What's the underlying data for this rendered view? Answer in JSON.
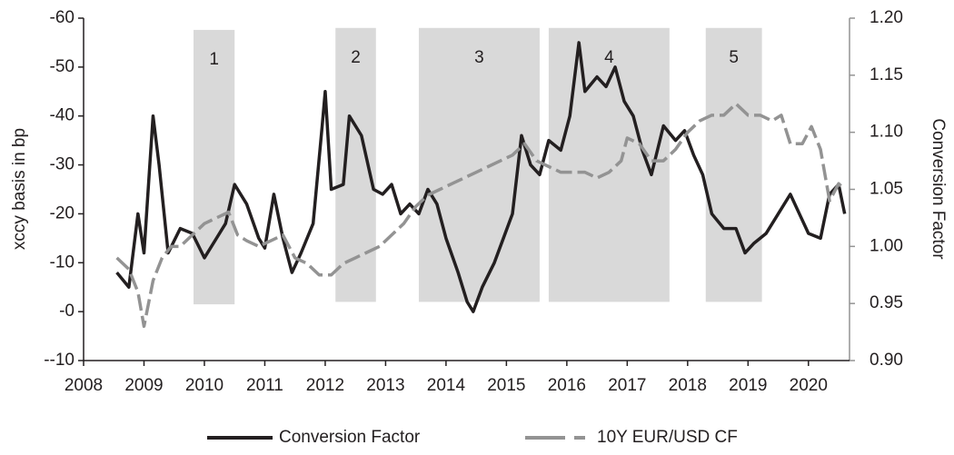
{
  "chart_data": {
    "type": "line",
    "y_label": "xccy basis in bp",
    "y2_label": "Conversion Factor",
    "xlim": [
      2008,
      2020.68
    ],
    "xticks": [
      2008,
      2009,
      2010,
      2011,
      2012,
      2013,
      2014,
      2015,
      2016,
      2017,
      2018,
      2019,
      2020
    ],
    "ylim": [
      10,
      -60
    ],
    "yticks": [
      -60,
      -50,
      -40,
      -30,
      -20,
      -10,
      {
        "value": 0,
        "label": "-0"
      },
      {
        "value": 10,
        "label": "--10"
      }
    ],
    "y2lim": [
      0.9,
      1.2
    ],
    "y2ticks": [
      {
        "value": 0.9,
        "label": "0.90"
      },
      0.95,
      {
        "value": 1,
        "label": "1.00"
      },
      1.05,
      {
        "value": 1.1,
        "label": "1.10"
      },
      1.15,
      {
        "value": 1.2,
        "label": "1.20"
      }
    ],
    "shaded_regions": [
      {
        "label": "1",
        "x": [
          2009.82,
          2010.5
        ],
        "y": [
          -57.6,
          -1.5
        ]
      },
      {
        "label": "2",
        "x": [
          2012.17,
          2012.84
        ],
        "y": [
          -58,
          -2
        ]
      },
      {
        "label": "3",
        "x": [
          2013.55,
          2015.55
        ],
        "y": [
          -58,
          -2
        ]
      },
      {
        "label": "4",
        "x": [
          2015.7,
          2017.7
        ],
        "y": [
          -58,
          -2
        ]
      },
      {
        "label": "5",
        "x": [
          2018.3,
          2019.23
        ],
        "y": [
          -58,
          -2
        ]
      }
    ],
    "legend": "bottom",
    "series": [
      {
        "name": "Conversion Factor",
        "color": "#231f20",
        "dash": false,
        "axis": "y",
        "x": [
          2008.55,
          2008.75,
          2008.9,
          2009.0,
          2009.15,
          2009.25,
          2009.4,
          2009.6,
          2009.8,
          2010.0,
          2010.2,
          2010.35,
          2010.5,
          2010.7,
          2010.9,
          2011.0,
          2011.15,
          2011.3,
          2011.45,
          2011.6,
          2011.8,
          2011.95,
          2012.0,
          2012.1,
          2012.3,
          2012.4,
          2012.6,
          2012.8,
          2012.95,
          2013.1,
          2013.25,
          2013.4,
          2013.55,
          2013.7,
          2013.85,
          2014.0,
          2014.2,
          2014.35,
          2014.45,
          2014.6,
          2014.8,
          2014.95,
          2015.1,
          2015.25,
          2015.4,
          2015.55,
          2015.7,
          2015.9,
          2016.05,
          2016.2,
          2016.3,
          2016.5,
          2016.65,
          2016.8,
          2016.95,
          2017.1,
          2017.25,
          2017.4,
          2017.6,
          2017.8,
          2017.95,
          2018.1,
          2018.25,
          2018.4,
          2018.6,
          2018.8,
          2018.95,
          2019.1,
          2019.3,
          2019.5,
          2019.7,
          2019.85,
          2020.0,
          2020.2,
          2020.35,
          2020.5,
          2020.6
        ],
        "values": [
          -8,
          -5,
          -20,
          -12,
          -40,
          -30,
          -12,
          -17,
          -16,
          -11,
          -15,
          -18,
          -26,
          -22,
          -15,
          -13,
          -24,
          -15,
          -8,
          -12,
          -18,
          -38,
          -45,
          -25,
          -26,
          -40,
          -36,
          -25,
          -24,
          -26,
          -20,
          -22,
          -20,
          -25,
          -22,
          -15,
          -8,
          -2,
          0,
          -5,
          -10,
          -15,
          -20,
          -36,
          -30,
          -28,
          -35,
          -33,
          -40,
          -55,
          -45,
          -48,
          -46,
          -50,
          -43,
          -40,
          -33,
          -28,
          -38,
          -35,
          -37,
          -32,
          -28,
          -20,
          -17,
          -17,
          -12,
          -14,
          -16,
          -20,
          -24,
          -20,
          -16,
          -15,
          -24,
          -26,
          -20
        ]
      },
      {
        "name": "10Y EUR/USD CF",
        "color": "#939393",
        "dash": true,
        "axis": "y2",
        "x": [
          2008.55,
          2008.75,
          2008.9,
          2009.0,
          2009.15,
          2009.3,
          2009.45,
          2009.6,
          2009.8,
          2010.0,
          2010.2,
          2010.4,
          2010.55,
          2010.7,
          2010.9,
          2011.1,
          2011.3,
          2011.5,
          2011.7,
          2011.9,
          2012.1,
          2012.3,
          2012.5,
          2012.7,
          2012.9,
          2013.1,
          2013.3,
          2013.5,
          2013.7,
          2013.9,
          2014.1,
          2014.3,
          2014.5,
          2014.7,
          2014.9,
          2015.1,
          2015.3,
          2015.5,
          2015.7,
          2015.9,
          2016.1,
          2016.3,
          2016.5,
          2016.7,
          2016.9,
          2017.0,
          2017.2,
          2017.4,
          2017.6,
          2017.8,
          2018.0,
          2018.2,
          2018.4,
          2018.6,
          2018.8,
          2019.0,
          2019.2,
          2019.4,
          2019.55,
          2019.7,
          2019.9,
          2020.05,
          2020.2,
          2020.35,
          2020.5,
          2020.6
        ],
        "values": [
          0.99,
          0.98,
          0.96,
          0.93,
          0.97,
          0.99,
          1.0,
          1.0,
          1.01,
          1.02,
          1.025,
          1.03,
          1.01,
          1.005,
          1.0,
          1.005,
          1.01,
          0.99,
          0.985,
          0.975,
          0.975,
          0.985,
          0.99,
          0.995,
          1.0,
          1.01,
          1.02,
          1.035,
          1.045,
          1.05,
          1.055,
          1.06,
          1.065,
          1.07,
          1.075,
          1.08,
          1.09,
          1.075,
          1.07,
          1.065,
          1.065,
          1.065,
          1.06,
          1.065,
          1.075,
          1.095,
          1.09,
          1.075,
          1.075,
          1.085,
          1.1,
          1.11,
          1.115,
          1.115,
          1.125,
          1.115,
          1.115,
          1.11,
          1.115,
          1.09,
          1.09,
          1.105,
          1.085,
          1.04,
          1.055,
          1.05
        ]
      }
    ]
  }
}
